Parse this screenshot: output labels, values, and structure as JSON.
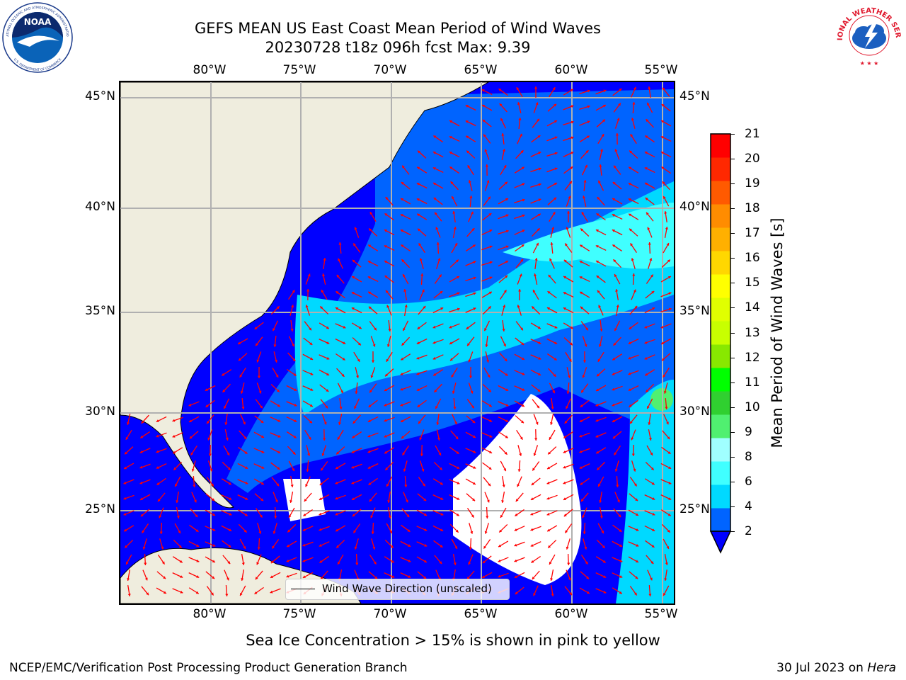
{
  "title": {
    "line1": "GEFS MEAN US East Coast Mean Period of Wind Waves",
    "line2": "20230728 t18z 096h fcst   Max: 9.39"
  },
  "logos": {
    "noara_text": "NOAA",
    "noaa_ring_top": "NATIONAL OCEANIC AND ATMOSPHERIC ADMINISTRATION",
    "noaa_ring_bottom": "U.S. DEPARTMENT OF COMMERCE",
    "nws_ring_text": "NATIONAL WEATHER SERVICE"
  },
  "map": {
    "lon_labels": [
      "80°W",
      "75°W",
      "70°W",
      "65°W",
      "60°W",
      "55°W"
    ],
    "lat_labels": [
      "45°N",
      "40°N",
      "35°N",
      "30°N",
      "25°N"
    ],
    "legend_label": "Wind Wave Direction (unscaled)",
    "land_color": "#efedde",
    "arrow_color": "#ff0000",
    "grid_color": "#b0b0b0"
  },
  "colorbar": {
    "label": "Mean Period of Wind Waves [s]",
    "ticks": [
      "21",
      "20",
      "19",
      "18",
      "17",
      "16",
      "15",
      "14",
      "13",
      "12",
      "11",
      "10",
      "9",
      "8",
      "6",
      "4",
      "2"
    ],
    "colors_bottom_to_top": [
      "#0000ff",
      "#0064ff",
      "#00d9ff",
      "#40ffff",
      "#a0ffff",
      "#50f070",
      "#30d030",
      "#00ff00",
      "#88e800",
      "#c8ff00",
      "#e0ff00",
      "#ffff00",
      "#ffd700",
      "#ffb000",
      "#ff8c00",
      "#ff5a00",
      "#ff2800",
      "#ff0000"
    ]
  },
  "footer": {
    "ice_note": "Sea Ice Concentration > 15% is shown in pink to yellow",
    "branch": "NCEP/EMC/Verification Post Processing Product Generation Branch",
    "date_prefix": "30 Jul 2023 on ",
    "machine": "Hera"
  }
}
